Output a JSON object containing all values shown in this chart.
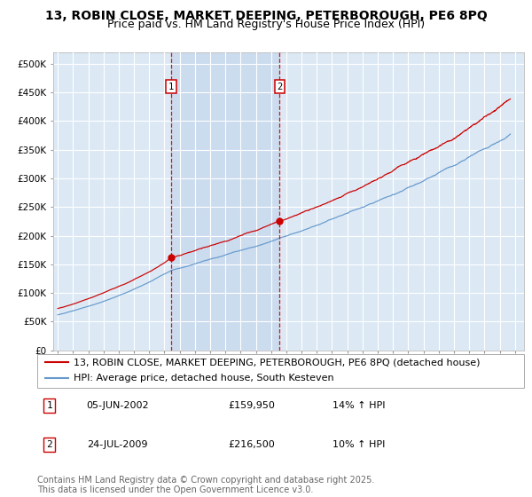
{
  "title": "13, ROBIN CLOSE, MARKET DEEPING, PETERBOROUGH, PE6 8PQ",
  "subtitle": "Price paid vs. HM Land Registry's House Price Index (HPI)",
  "ylim": [
    0,
    520000
  ],
  "yticks": [
    0,
    50000,
    100000,
    150000,
    200000,
    250000,
    300000,
    350000,
    400000,
    450000,
    500000
  ],
  "xlim_start": 1994.7,
  "xlim_end": 2025.6,
  "background_color": "#ffffff",
  "plot_bg_color": "#dce9f5",
  "grid_color": "#ffffff",
  "red_line_color": "#cc0000",
  "blue_line_color": "#6699cc",
  "vline_color": "#cc0000",
  "shade_color": "#ccdcef",
  "marker1_date": 2002.43,
  "marker2_date": 2009.56,
  "marker1_val": 159950,
  "marker2_val": 216500,
  "legend_label1": "13, ROBIN CLOSE, MARKET DEEPING, PETERBOROUGH, PE6 8PQ (detached house)",
  "legend_label2": "HPI: Average price, detached house, South Kesteven",
  "table_rows": [
    {
      "num": "1",
      "date": "05-JUN-2002",
      "price": "£159,950",
      "hpi": "14% ↑ HPI"
    },
    {
      "num": "2",
      "date": "24-JUL-2009",
      "price": "£216,500",
      "hpi": "10% ↑ HPI"
    }
  ],
  "footer": "Contains HM Land Registry data © Crown copyright and database right 2025.\nThis data is licensed under the Open Government Licence v3.0.",
  "title_fontsize": 10,
  "subtitle_fontsize": 9,
  "tick_fontsize": 7.5,
  "legend_fontsize": 8,
  "table_fontsize": 8,
  "footer_fontsize": 7
}
